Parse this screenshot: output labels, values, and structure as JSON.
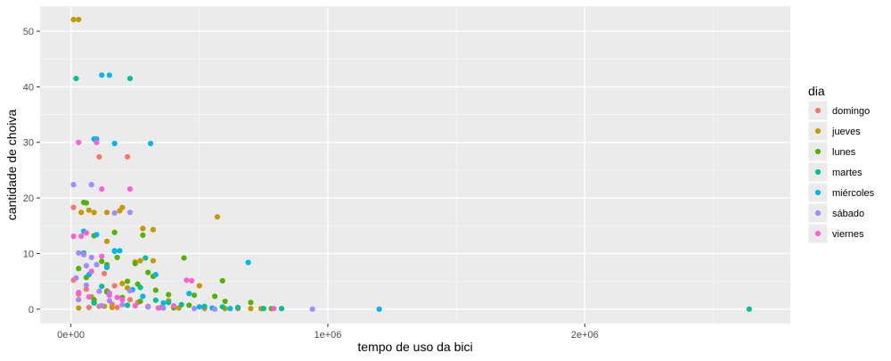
{
  "chart_data": {
    "type": "scatter",
    "xlabel": "tempo de uso da bici",
    "ylabel": "cantidade de choiva",
    "xlim": [
      -120000,
      2800000
    ],
    "ylim": [
      -2.6,
      54.5
    ],
    "x_ticks": [
      {
        "value": 0,
        "label": "0e+00"
      },
      {
        "value": 1000000,
        "label": "1e+06"
      },
      {
        "value": 2000000,
        "label": "2e+06"
      }
    ],
    "y_ticks": [
      {
        "value": 0,
        "label": "0"
      },
      {
        "value": 10,
        "label": "10"
      },
      {
        "value": 20,
        "label": "20"
      },
      {
        "value": 30,
        "label": "30"
      },
      {
        "value": 40,
        "label": "40"
      },
      {
        "value": 50,
        "label": "50"
      }
    ],
    "grid": true,
    "legend": {
      "title": "dia",
      "position": "right",
      "entries": [
        "domingo",
        "jueves",
        "lunes",
        "martes",
        "miércoles",
        "sábado",
        "viernes"
      ]
    },
    "colors": {
      "domingo": "#F8766D",
      "jueves": "#C49A00",
      "lunes": "#53B400",
      "martes": "#00C094",
      "miércoles": "#00B6EB",
      "sábado": "#A58AFF",
      "viernes": "#FB61D7"
    },
    "series": [
      {
        "name": "domingo",
        "points": [
          [
            10000,
            18.3
          ],
          [
            70000,
            0.3
          ],
          [
            110000,
            0.5
          ],
          [
            140000,
            3.3
          ],
          [
            160000,
            0.9
          ],
          [
            180000,
            0.3
          ],
          [
            10000,
            5.2
          ],
          [
            30000,
            2.7
          ],
          [
            60000,
            3.6
          ],
          [
            110000,
            27.4
          ],
          [
            220000,
            27.4
          ],
          [
            230000,
            1.7
          ],
          [
            260000,
            1.2
          ],
          [
            300000,
            0.5
          ],
          [
            400000,
            0.2
          ],
          [
            520000,
            0.1
          ],
          [
            650000,
            0.1
          ],
          [
            170000,
            4.2
          ],
          [
            130000,
            6.4
          ],
          [
            90000,
            1.3
          ]
        ]
      },
      {
        "name": "jueves",
        "points": [
          [
            10000,
            52.1
          ],
          [
            30000,
            52.1
          ],
          [
            40000,
            17.4
          ],
          [
            70000,
            17.8
          ],
          [
            90000,
            17.4
          ],
          [
            200000,
            18.3
          ],
          [
            190000,
            17.7
          ],
          [
            280000,
            14.5
          ],
          [
            320000,
            14.3
          ],
          [
            570000,
            16.6
          ],
          [
            140000,
            17.4
          ],
          [
            140000,
            12.2
          ],
          [
            270000,
            8.7
          ],
          [
            250000,
            8.5
          ],
          [
            320000,
            8.7
          ],
          [
            200000,
            4.6
          ],
          [
            300000,
            0.4
          ],
          [
            350000,
            0.3
          ],
          [
            420000,
            0.2
          ],
          [
            520000,
            0.4
          ],
          [
            600000,
            0.1
          ],
          [
            700000,
            0.1
          ],
          [
            740000,
            0.1
          ],
          [
            30000,
            0.2
          ],
          [
            130000,
            0.5
          ],
          [
            220000,
            3.8
          ],
          [
            80000,
            2.2
          ],
          [
            160000,
            0.3
          ],
          [
            500000,
            4.2
          ],
          [
            380000,
            1.5
          ]
        ]
      },
      {
        "name": "lunes",
        "points": [
          [
            50000,
            19.2
          ],
          [
            60000,
            19.1
          ],
          [
            90000,
            13.2
          ],
          [
            170000,
            13.8
          ],
          [
            280000,
            13.3
          ],
          [
            440000,
            9.2
          ],
          [
            590000,
            5.1
          ],
          [
            30000,
            7.3
          ],
          [
            60000,
            5.7
          ],
          [
            120000,
            8.6
          ],
          [
            140000,
            8.0
          ],
          [
            180000,
            9.3
          ],
          [
            250000,
            8.2
          ],
          [
            300000,
            6.6
          ],
          [
            320000,
            5.9
          ],
          [
            220000,
            5.0
          ],
          [
            260000,
            4.5
          ],
          [
            330000,
            3.4
          ],
          [
            380000,
            2.6
          ],
          [
            480000,
            2.5
          ],
          [
            560000,
            2.3
          ],
          [
            600000,
            1.4
          ],
          [
            700000,
            1.2
          ],
          [
            780000,
            0.1
          ],
          [
            400000,
            0.3
          ],
          [
            460000,
            0.7
          ],
          [
            90000,
            1.7
          ],
          [
            140000,
            3.1
          ],
          [
            200000,
            2.1
          ],
          [
            270000,
            1.4
          ]
        ]
      },
      {
        "name": "martes",
        "points": [
          [
            20000,
            41.5
          ],
          [
            230000,
            41.5
          ],
          [
            50000,
            10.1
          ],
          [
            170000,
            10.5
          ],
          [
            290000,
            9.2
          ],
          [
            120000,
            4.1
          ],
          [
            270000,
            3.9
          ],
          [
            380000,
            1.2
          ],
          [
            430000,
            0.8
          ],
          [
            520000,
            0.5
          ],
          [
            590000,
            0.4
          ],
          [
            650000,
            0.3
          ],
          [
            750000,
            0.1
          ],
          [
            820000,
            0.1
          ],
          [
            2640000,
            0.0
          ],
          [
            330000,
            1.6
          ],
          [
            220000,
            0.7
          ],
          [
            90000,
            1.1
          ]
        ]
      },
      {
        "name": "miércoles",
        "points": [
          [
            120000,
            42.1
          ],
          [
            150000,
            42.1
          ],
          [
            90000,
            30.6
          ],
          [
            100000,
            30.6
          ],
          [
            170000,
            29.8
          ],
          [
            310000,
            29.8
          ],
          [
            50000,
            14.0
          ],
          [
            100000,
            13.4
          ],
          [
            170000,
            10.4
          ],
          [
            190000,
            10.5
          ],
          [
            330000,
            6.2
          ],
          [
            460000,
            2.8
          ],
          [
            690000,
            8.4
          ],
          [
            1200000,
            0.0
          ],
          [
            500000,
            0.4
          ],
          [
            550000,
            0.2
          ],
          [
            240000,
            3.5
          ],
          [
            280000,
            2.3
          ],
          [
            70000,
            6.2
          ],
          [
            140000,
            7.5
          ],
          [
            360000,
            1.1
          ],
          [
            620000,
            0.1
          ]
        ]
      },
      {
        "name": "sábado",
        "points": [
          [
            10000,
            22.4
          ],
          [
            80000,
            22.4
          ],
          [
            170000,
            17.3
          ],
          [
            230000,
            17.4
          ],
          [
            30000,
            10.1
          ],
          [
            50000,
            9.8
          ],
          [
            80000,
            9.3
          ],
          [
            60000,
            7.8
          ],
          [
            100000,
            8.0
          ],
          [
            20000,
            5.6
          ],
          [
            60000,
            4.3
          ],
          [
            110000,
            3.2
          ],
          [
            150000,
            2.9
          ],
          [
            30000,
            1.7
          ],
          [
            150000,
            1.5
          ],
          [
            200000,
            0.8
          ],
          [
            300000,
            0.4
          ],
          [
            360000,
            0.2
          ],
          [
            480000,
            0.1
          ],
          [
            560000,
            0.0
          ],
          [
            940000,
            0.0
          ],
          [
            230000,
            3.3
          ],
          [
            120000,
            0.6
          ]
        ]
      },
      {
        "name": "viernes",
        "points": [
          [
            30000,
            30.0
          ],
          [
            100000,
            30.0
          ],
          [
            120000,
            21.6
          ],
          [
            230000,
            21.6
          ],
          [
            10000,
            13.1
          ],
          [
            40000,
            13.1
          ],
          [
            60000,
            13.7
          ],
          [
            120000,
            9.5
          ],
          [
            80000,
            6.8
          ],
          [
            30000,
            3.0
          ],
          [
            70000,
            2.2
          ],
          [
            150000,
            2.5
          ],
          [
            180000,
            2.1
          ],
          [
            450000,
            5.2
          ],
          [
            470000,
            5.1
          ],
          [
            400000,
            0.6
          ],
          [
            250000,
            0.6
          ],
          [
            340000,
            0.2
          ],
          [
            790000,
            0.1
          ],
          [
            200000,
            1.7
          ]
        ]
      }
    ]
  }
}
